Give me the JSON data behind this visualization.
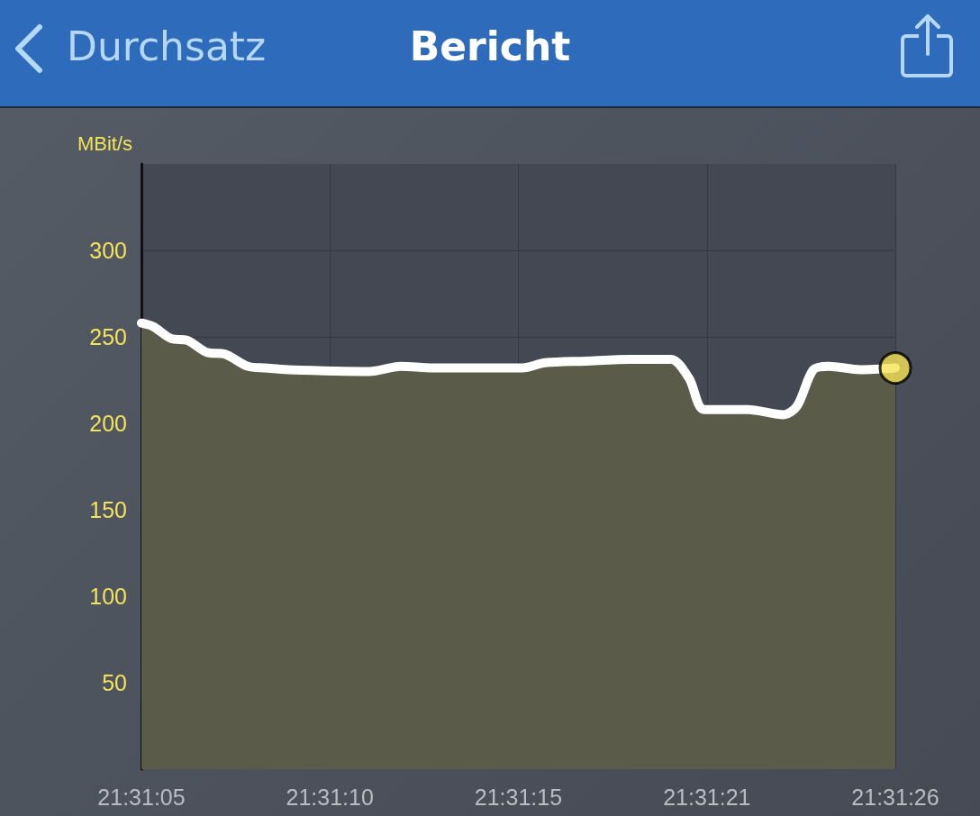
{
  "chart_data": {
    "type": "area",
    "title": "Bericht",
    "ylabel": "MBit/s",
    "annotations": [
      "Durchsatz"
    ],
    "series": [
      {
        "color": "#ffffff",
        "x": [
          21.518056,
          21.518146,
          21.518286,
          21.518411,
          21.518564,
          21.518704,
          21.518878,
          21.519017,
          21.519192,
          21.519819,
          21.520063,
          21.520307,
          21.520655,
          21.521004,
          21.521178,
          21.521492,
          21.52184,
          21.522154,
          21.522293,
          21.522411,
          21.522746,
          21.523025,
          21.523129,
          21.523255,
          21.523373,
          21.523617,
          21.523889
        ],
        "values": [
          258,
          256,
          249,
          248,
          241,
          240,
          233,
          232,
          231,
          230,
          233,
          232,
          232,
          232,
          235,
          236,
          237,
          237,
          226,
          208,
          208,
          205,
          210,
          231,
          233,
          231,
          232
        ]
      },
      {
        "type": "scatter",
        "color": "#f5e356",
        "x": [
          21.523889
        ],
        "values": [
          232
        ]
      }
    ],
    "xlim": [
      21.518056,
      21.523889
    ],
    "xticks": [
      {
        "value": 21.518056,
        "label": "21:31:05"
      },
      {
        "value": 21.519514,
        "label": "21:31:10"
      },
      {
        "value": 21.520972,
        "label": "21:31:15"
      },
      {
        "value": 21.522431,
        "label": "21:31:21"
      },
      {
        "value": 21.523889,
        "label": "21:31:26"
      }
    ],
    "ylim": [
      0,
      350
    ],
    "yticks": [
      50,
      100,
      150,
      200,
      250,
      300
    ],
    "grid": true
  }
}
